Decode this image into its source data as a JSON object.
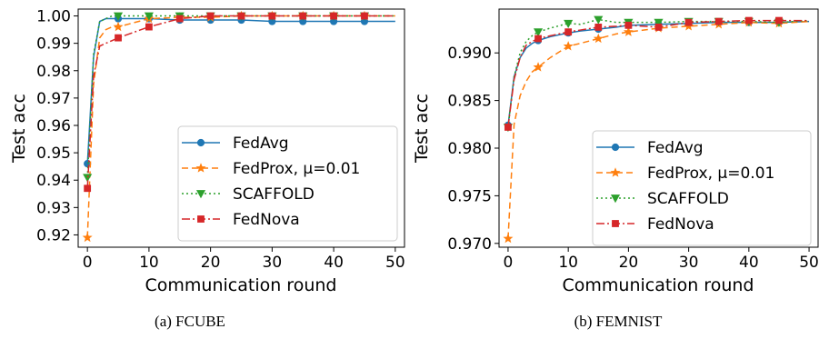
{
  "chart_data": [
    {
      "type": "line",
      "caption": "(a) FCUBE",
      "xlabel": "Communication round",
      "ylabel": "Test acc",
      "xlim": [
        -1.5,
        51.5
      ],
      "ylim": [
        0.9155,
        1.0025
      ],
      "xticks": [
        0,
        10,
        20,
        30,
        40,
        50
      ],
      "yticks": [
        0.92,
        0.93,
        0.94,
        0.95,
        0.96,
        0.97,
        0.98,
        0.99,
        1.0
      ],
      "ytick_labels": [
        "0.92",
        "0.93",
        "0.94",
        "0.95",
        "0.96",
        "0.97",
        "0.98",
        "0.99",
        "1.00"
      ],
      "grid": false,
      "legend_position": "lower-right",
      "series": [
        {
          "name": "FedAvg",
          "color": "#1f77b4",
          "dash": "solid",
          "marker": "circle",
          "x": [
            0,
            1,
            2,
            3,
            4,
            5,
            10,
            15,
            20,
            25,
            30,
            35,
            40,
            45,
            50
          ],
          "y": [
            0.946,
            0.985,
            0.998,
            0.999,
            0.999,
            0.999,
            0.999,
            0.9985,
            0.9985,
            0.9985,
            0.998,
            0.998,
            0.998,
            0.998,
            0.998
          ],
          "marker_x": [
            0,
            5,
            10,
            15,
            20,
            25,
            30,
            35,
            40,
            45
          ],
          "marker_y": [
            0.946,
            0.999,
            0.999,
            0.9985,
            0.9985,
            0.9985,
            0.998,
            0.998,
            0.998,
            0.998
          ]
        },
        {
          "name": "FedProx, μ=0.01",
          "color": "#ff7f0e",
          "dash": "dashed",
          "marker": "star",
          "x": [
            0,
            1,
            2,
            3,
            4,
            5,
            10,
            15,
            20,
            25,
            30,
            35,
            40,
            45,
            50
          ],
          "y": [
            0.919,
            0.975,
            0.992,
            0.995,
            0.996,
            0.996,
            0.999,
            0.9995,
            0.9995,
            1.0,
            1.0,
            1.0,
            1.0,
            1.0,
            1.0
          ],
          "marker_x": [
            0,
            5,
            10,
            15,
            20,
            25,
            30,
            35,
            40,
            45
          ],
          "marker_y": [
            0.919,
            0.996,
            0.999,
            0.9995,
            0.9995,
            1.0,
            1.0,
            1.0,
            1.0,
            1.0
          ]
        },
        {
          "name": "SCAFFOLD",
          "color": "#2ca02c",
          "dash": "dotted",
          "marker": "triangle-down",
          "x": [
            0,
            1,
            2,
            3,
            4,
            5,
            10,
            15,
            20,
            25,
            30,
            35,
            40,
            45,
            50
          ],
          "y": [
            0.941,
            0.986,
            0.998,
            0.999,
            1.0,
            1.0,
            1.0,
            1.0,
            1.0,
            1.0,
            1.0,
            1.0,
            1.0,
            1.0,
            1.0
          ],
          "marker_x": [
            0,
            5,
            10,
            15,
            20,
            25,
            30,
            35,
            40,
            45
          ],
          "marker_y": [
            0.941,
            1.0,
            1.0,
            1.0,
            1.0,
            1.0,
            1.0,
            1.0,
            1.0,
            1.0
          ]
        },
        {
          "name": "FedNova",
          "color": "#d62728",
          "dash": "dashdot",
          "marker": "square",
          "x": [
            0,
            1,
            2,
            3,
            4,
            5,
            10,
            15,
            20,
            25,
            30,
            35,
            40,
            45,
            50
          ],
          "y": [
            0.937,
            0.978,
            0.989,
            0.99,
            0.991,
            0.992,
            0.996,
            0.999,
            1.0,
            1.0,
            1.0,
            1.0,
            1.0,
            1.0,
            1.0
          ],
          "marker_x": [
            0,
            5,
            10,
            15,
            20,
            25,
            30,
            35,
            40,
            45
          ],
          "marker_y": [
            0.937,
            0.992,
            0.996,
            0.999,
            1.0,
            1.0,
            1.0,
            1.0,
            1.0,
            1.0
          ]
        }
      ]
    },
    {
      "type": "line",
      "caption": "(b) FEMNIST",
      "xlabel": "Communication round",
      "ylabel": "Test acc",
      "xlim": [
        -1.5,
        51.5
      ],
      "ylim": [
        0.9696,
        0.9946
      ],
      "xticks": [
        0,
        10,
        20,
        30,
        40,
        50
      ],
      "yticks": [
        0.97,
        0.975,
        0.98,
        0.985,
        0.99
      ],
      "ytick_labels": [
        "0.970",
        "0.975",
        "0.980",
        "0.985",
        "0.990"
      ],
      "grid": false,
      "legend_position": "lower-right",
      "series": [
        {
          "name": "FedAvg",
          "color": "#1f77b4",
          "dash": "solid",
          "marker": "circle",
          "x": [
            0,
            1,
            2,
            3,
            4,
            5,
            7,
            10,
            12,
            15,
            18,
            20,
            25,
            30,
            35,
            40,
            45,
            50
          ],
          "y": [
            0.9824,
            0.9875,
            0.9895,
            0.9905,
            0.991,
            0.9913,
            0.9917,
            0.9921,
            0.9923,
            0.9925,
            0.9927,
            0.9929,
            0.993,
            0.9931,
            0.9932,
            0.9932,
            0.9932,
            0.9933
          ],
          "marker_x": [
            0,
            5,
            10,
            15,
            20,
            25,
            30,
            35,
            40,
            45
          ],
          "marker_y": [
            0.9824,
            0.9913,
            0.9921,
            0.9925,
            0.9929,
            0.993,
            0.9931,
            0.9932,
            0.9932,
            0.9932
          ]
        },
        {
          "name": "FedProx, μ=0.01",
          "color": "#ff7f0e",
          "dash": "dashed",
          "marker": "star",
          "x": [
            0,
            1,
            2,
            3,
            4,
            5,
            7,
            10,
            12,
            15,
            18,
            20,
            25,
            30,
            35,
            40,
            45,
            50
          ],
          "y": [
            0.9705,
            0.9825,
            0.9855,
            0.987,
            0.988,
            0.9885,
            0.9895,
            0.9907,
            0.991,
            0.9915,
            0.992,
            0.9922,
            0.9926,
            0.9928,
            0.993,
            0.9932,
            0.9931,
            0.9933
          ],
          "marker_x": [
            0,
            5,
            10,
            15,
            20,
            25,
            30,
            35,
            40,
            45
          ],
          "marker_y": [
            0.9705,
            0.9885,
            0.9907,
            0.9915,
            0.9922,
            0.9926,
            0.9928,
            0.993,
            0.9932,
            0.9931
          ]
        },
        {
          "name": "SCAFFOLD",
          "color": "#2ca02c",
          "dash": "dotted",
          "marker": "triangle-down",
          "x": [
            0,
            1,
            2,
            3,
            4,
            5,
            7,
            10,
            12,
            15,
            18,
            20,
            25,
            30,
            35,
            40,
            45,
            50
          ],
          "y": [
            0.9822,
            0.9875,
            0.99,
            0.9912,
            0.9918,
            0.9922,
            0.9926,
            0.9931,
            0.993,
            0.9935,
            0.9932,
            0.9932,
            0.9932,
            0.9933,
            0.9933,
            0.9933,
            0.9932,
            0.9934
          ],
          "marker_x": [
            0,
            5,
            10,
            15,
            20,
            25,
            30,
            35,
            40,
            45
          ],
          "marker_y": [
            0.9822,
            0.9922,
            0.9931,
            0.9935,
            0.9932,
            0.9932,
            0.9933,
            0.9933,
            0.9933,
            0.9932
          ]
        },
        {
          "name": "FedNova",
          "color": "#d62728",
          "dash": "dashdot",
          "marker": "square",
          "x": [
            0,
            1,
            2,
            3,
            4,
            5,
            7,
            10,
            12,
            15,
            18,
            20,
            25,
            30,
            35,
            40,
            45,
            50
          ],
          "y": [
            0.9822,
            0.9872,
            0.9895,
            0.9908,
            0.9912,
            0.9915,
            0.9918,
            0.9922,
            0.9924,
            0.9927,
            0.9928,
            0.9929,
            0.9927,
            0.9932,
            0.9933,
            0.9934,
            0.9934,
            0.9934
          ],
          "marker_x": [
            0,
            5,
            10,
            15,
            20,
            25,
            30,
            35,
            40,
            45
          ],
          "marker_y": [
            0.9822,
            0.9915,
            0.9922,
            0.9927,
            0.9929,
            0.9927,
            0.9932,
            0.9933,
            0.9934,
            0.9934
          ]
        }
      ]
    }
  ]
}
